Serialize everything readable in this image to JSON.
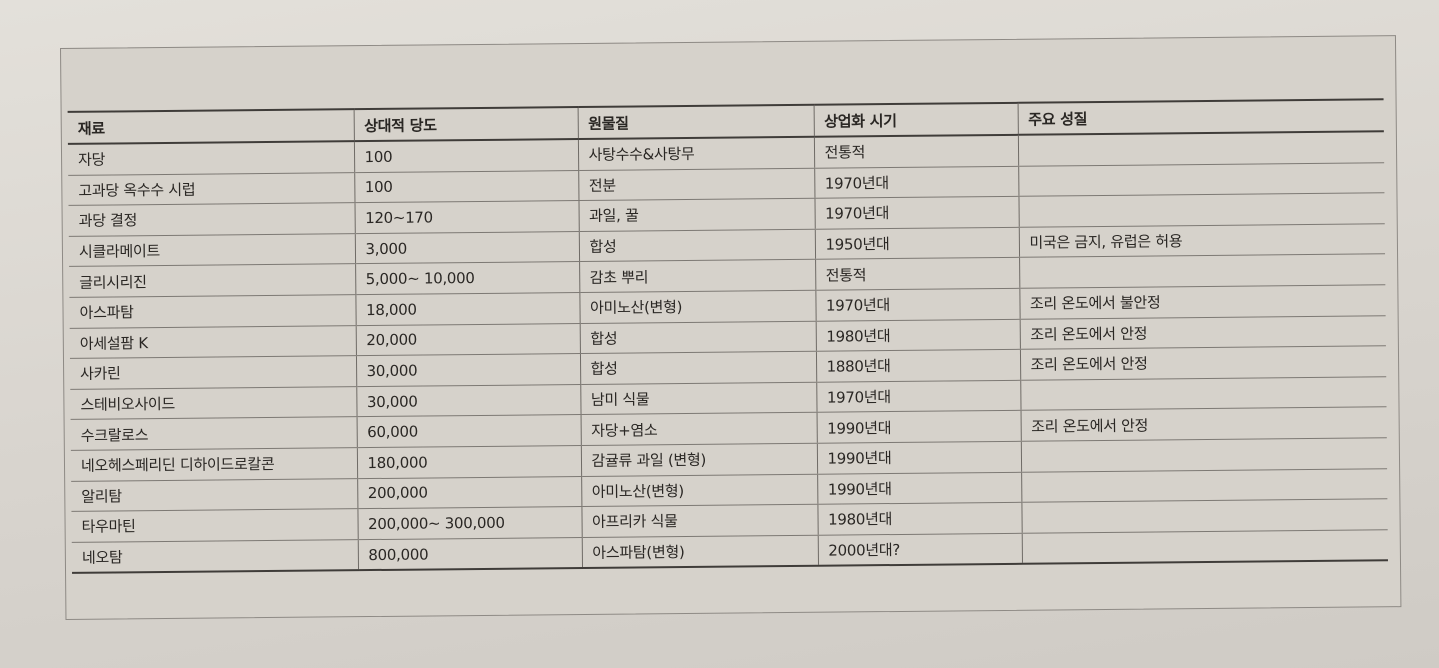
{
  "table": {
    "headers": [
      "재료",
      "상대적 당도",
      "원물질",
      "상업화 시기",
      "주요 성질"
    ],
    "rows": [
      [
        "자당",
        "100",
        "사탕수수&사탕무",
        "전통적",
        ""
      ],
      [
        "고과당 옥수수 시럽",
        "100",
        "전분",
        "1970년대",
        ""
      ],
      [
        "과당 결정",
        "120~170",
        "과일, 꿀",
        "1970년대",
        ""
      ],
      [
        "시클라메이트",
        "3,000",
        "합성",
        "1950년대",
        "미국은 금지, 유럽은 허용"
      ],
      [
        "글리시리진",
        "5,000~ 10,000",
        "감초 뿌리",
        "전통적",
        ""
      ],
      [
        "아스파탐",
        "18,000",
        "아미노산(변형)",
        "1970년대",
        "조리 온도에서 불안정"
      ],
      [
        "아세설팜 K",
        "20,000",
        "합성",
        "1980년대",
        "조리 온도에서 안정"
      ],
      [
        "사카린",
        "30,000",
        "합성",
        "1880년대",
        "조리 온도에서 안정"
      ],
      [
        "스테비오사이드",
        "30,000",
        "남미 식물",
        "1970년대",
        ""
      ],
      [
        "수크랄로스",
        "60,000",
        "자당+염소",
        "1990년대",
        "조리 온도에서 안정"
      ],
      [
        "네오헤스페리딘 디하이드로칼콘",
        "180,000",
        "감귤류 과일 (변형)",
        "1990년대",
        ""
      ],
      [
        "알리탐",
        "200,000",
        "아미노산(변형)",
        "1990년대",
        ""
      ],
      [
        "타우마틴",
        "200,000~ 300,000",
        "아프리카 식물",
        "1980년대",
        ""
      ],
      [
        "네오탐",
        "800,000",
        "아스파탐(변형)",
        "2000년대?",
        ""
      ]
    ]
  }
}
